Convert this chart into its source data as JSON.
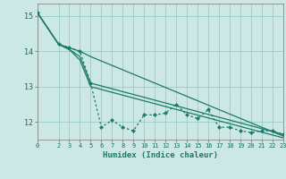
{
  "xlabel": "Humidex (Indice chaleur)",
  "background_color": "#cce8e4",
  "grid_color": "#99ccc4",
  "line_color": "#1a7a6a",
  "xlim": [
    0,
    23
  ],
  "ylim": [
    11.5,
    15.35
  ],
  "yticks": [
    12,
    13,
    14,
    15
  ],
  "xtick_labels": [
    "0",
    "2",
    "3",
    "4",
    "5",
    "6",
    "7",
    "8",
    "9",
    "10",
    "11",
    "12",
    "13",
    "14",
    "15",
    "16",
    "17",
    "18",
    "19",
    "20",
    "21",
    "22",
    "23"
  ],
  "xtick_vals": [
    0,
    2,
    3,
    4,
    5,
    6,
    7,
    8,
    9,
    10,
    11,
    12,
    13,
    14,
    15,
    16,
    17,
    18,
    19,
    20,
    21,
    22,
    23
  ],
  "series_dotted": {
    "x": [
      0,
      2,
      3,
      4,
      5,
      6,
      7,
      8,
      9,
      10,
      11,
      12,
      13,
      14,
      15,
      16,
      17,
      18,
      19,
      20,
      21,
      22,
      23
    ],
    "y": [
      15.1,
      14.2,
      14.1,
      14.0,
      13.1,
      11.85,
      12.05,
      11.85,
      11.75,
      12.2,
      12.2,
      12.25,
      12.5,
      12.2,
      12.1,
      12.35,
      11.85,
      11.85,
      11.75,
      11.7,
      11.75,
      11.75,
      11.65
    ]
  },
  "series_solid": [
    {
      "x": [
        0,
        2,
        3,
        4,
        5,
        23
      ],
      "y": [
        15.1,
        14.2,
        14.05,
        13.85,
        13.1,
        11.65
      ]
    },
    {
      "x": [
        0,
        2,
        3,
        4,
        5,
        23
      ],
      "y": [
        15.1,
        14.2,
        14.05,
        13.75,
        13.0,
        11.55
      ]
    },
    {
      "x": [
        0,
        2,
        3,
        4,
        5,
        23
      ],
      "y": [
        15.1,
        14.2,
        14.1,
        14.0,
        13.85,
        11.6
      ]
    }
  ]
}
